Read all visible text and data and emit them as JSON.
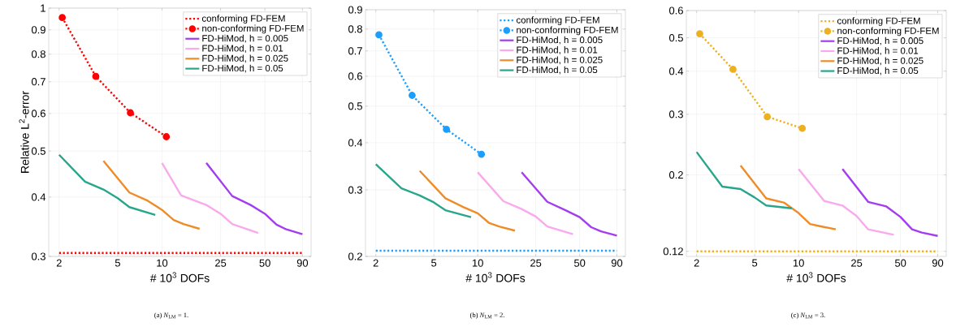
{
  "chart_data": [
    {
      "type": "line",
      "xlabel": "# 10$^{3}$ DOFs",
      "ylabel": "Relative L$^{2}$-error",
      "annotations": [
        "(a) *N*$_{LM}$ = 1."
      ],
      "log": "xy",
      "grid": true,
      "legend": "top right",
      "xlim": [
        1.7,
        103
      ],
      "ylim": [
        0.3,
        1
      ],
      "xticks": [
        2,
        5,
        10,
        25,
        50,
        90
      ],
      "yticks": [
        0.3,
        0.4,
        0.5,
        0.6,
        0.7,
        0.8,
        0.9,
        1
      ],
      "series": [
        {
          "name": "conforming FD-FEM",
          "color": "#ff0000",
          "line_style": "dotted",
          "marker": "none",
          "x": [
            2,
            90
          ],
          "values": [
            0.305,
            0.305
          ]
        },
        {
          "name": "non-conforming FD-FEM",
          "color": "#ff0000",
          "line_style": "dotted",
          "marker": "circle",
          "x": [
            2.1,
            3.55,
            6.1,
            10.7
          ],
          "values": [
            0.955,
            0.718,
            0.602,
            0.536
          ]
        },
        {
          "name": "FD-HiMod, h = 0.005",
          "color": "#a43cf0",
          "line_style": "solid",
          "marker": "none",
          "x": [
            20,
            30,
            40,
            50,
            60,
            70,
            90
          ],
          "values": [
            0.472,
            0.402,
            0.385,
            0.369,
            0.35,
            0.342,
            0.334
          ]
        },
        {
          "name": "FD-HiMod, h = 0.01",
          "color": "#f9a9ec",
          "line_style": "solid",
          "marker": "none",
          "x": [
            10,
            13.5,
            20,
            25,
            30,
            45
          ],
          "values": [
            0.472,
            0.403,
            0.385,
            0.369,
            0.351,
            0.336
          ]
        },
        {
          "name": "FD-HiMod, h = 0.025",
          "color": "#ee8c28",
          "line_style": "solid",
          "marker": "none",
          "x": [
            4,
            6,
            8,
            10,
            12,
            14,
            18
          ],
          "values": [
            0.477,
            0.409,
            0.393,
            0.376,
            0.358,
            0.351,
            0.343
          ]
        },
        {
          "name": "FD-HiMod, h = 0.05",
          "color": "#28a68c",
          "line_style": "solid",
          "marker": "none",
          "x": [
            2,
            3,
            4,
            5,
            6,
            9
          ],
          "values": [
            0.491,
            0.431,
            0.415,
            0.398,
            0.381,
            0.367
          ]
        }
      ]
    },
    {
      "type": "line",
      "xlabel": "# 10$^{3}$ DOFs",
      "annotations": [
        "(b) *N*$_{LM}$ = 2."
      ],
      "log": "xy",
      "grid": true,
      "legend": "top right",
      "xlim": [
        1.7,
        103
      ],
      "ylim": [
        0.2,
        0.9
      ],
      "xticks": [
        2,
        5,
        10,
        25,
        50,
        90
      ],
      "yticks": [
        0.2,
        0.3,
        0.4,
        0.5,
        0.6,
        0.7,
        0.8,
        0.9
      ],
      "series": [
        {
          "name": "conforming FD-FEM",
          "color": "#1a9fff",
          "line_style": "dotted",
          "marker": "none",
          "x": [
            2,
            90
          ],
          "values": [
            0.207,
            0.207
          ]
        },
        {
          "name": "non-conforming FD-FEM",
          "color": "#1a9fff",
          "line_style": "dotted",
          "marker": "circle",
          "x": [
            2.1,
            3.55,
            6.1,
            10.6
          ],
          "values": [
            0.773,
            0.534,
            0.434,
            0.373
          ]
        },
        {
          "name": "FD-HiMod, h = 0.005",
          "color": "#a43cf0",
          "line_style": "solid",
          "marker": "none",
          "x": [
            20,
            30,
            40,
            50,
            60,
            70,
            90
          ],
          "values": [
            0.334,
            0.279,
            0.265,
            0.254,
            0.239,
            0.233,
            0.227
          ]
        },
        {
          "name": "FD-HiMod, h = 0.01",
          "color": "#f9a9ec",
          "line_style": "solid",
          "marker": "none",
          "x": [
            10,
            15,
            20,
            25,
            30,
            45
          ],
          "values": [
            0.334,
            0.28,
            0.267,
            0.255,
            0.24,
            0.229
          ]
        },
        {
          "name": "FD-HiMod, h = 0.025",
          "color": "#ee8c28",
          "line_style": "solid",
          "marker": "none",
          "x": [
            4,
            6,
            8,
            10,
            12,
            14,
            18
          ],
          "values": [
            0.337,
            0.285,
            0.27,
            0.26,
            0.245,
            0.24,
            0.234
          ]
        },
        {
          "name": "FD-HiMod, h = 0.05",
          "color": "#28a68c",
          "line_style": "solid",
          "marker": "none",
          "x": [
            2,
            3,
            4,
            5,
            6,
            9
          ],
          "values": [
            0.351,
            0.303,
            0.29,
            0.278,
            0.265,
            0.254
          ]
        }
      ]
    },
    {
      "type": "line",
      "xlabel": "# 10$^{3}$ DOFs",
      "annotations": [
        "(c) *N*$_{LM}$ = 3."
      ],
      "log": "xy",
      "grid": true,
      "legend": "top right",
      "xlim": [
        1.7,
        103
      ],
      "ylim": [
        0.116,
        0.6
      ],
      "xticks": [
        2,
        5,
        10,
        25,
        50,
        90
      ],
      "yticks": [
        0.12,
        0.2,
        0.3,
        0.4,
        0.5,
        0.6
      ],
      "series": [
        {
          "name": "conforming FD-FEM",
          "color": "#edb120",
          "line_style": "dotted",
          "marker": "none",
          "x": [
            2,
            90
          ],
          "values": [
            0.12,
            0.12
          ]
        },
        {
          "name": "non-conforming FD-FEM",
          "color": "#edb120",
          "line_style": "dotted",
          "marker": "circle",
          "x": [
            2.1,
            3.55,
            6.1,
            10.6
          ],
          "values": [
            0.514,
            0.405,
            0.295,
            0.273
          ]
        },
        {
          "name": "FD-HiMod, h = 0.005",
          "color": "#a43cf0",
          "line_style": "solid",
          "marker": "none",
          "x": [
            20,
            30,
            40,
            50,
            60,
            70,
            90
          ],
          "values": [
            0.208,
            0.167,
            0.162,
            0.151,
            0.139,
            0.136,
            0.133
          ]
        },
        {
          "name": "FD-HiMod, h = 0.01",
          "color": "#f9a9ec",
          "line_style": "solid",
          "marker": "none",
          "x": [
            10,
            15,
            20,
            25,
            30,
            45
          ],
          "values": [
            0.208,
            0.168,
            0.163,
            0.152,
            0.139,
            0.134
          ]
        },
        {
          "name": "FD-HiMod, h = 0.025",
          "color": "#ee8c28",
          "line_style": "solid",
          "marker": "none",
          "x": [
            4,
            6,
            8,
            10,
            12,
            14,
            18
          ],
          "values": [
            0.213,
            0.171,
            0.166,
            0.155,
            0.144,
            0.142,
            0.139
          ]
        },
        {
          "name": "FD-HiMod, h = 0.05",
          "color": "#28a68c",
          "line_style": "solid",
          "marker": "none",
          "x": [
            2,
            3,
            4,
            5,
            6,
            9
          ],
          "values": [
            0.233,
            0.185,
            0.182,
            0.172,
            0.163,
            0.16
          ]
        }
      ]
    }
  ]
}
